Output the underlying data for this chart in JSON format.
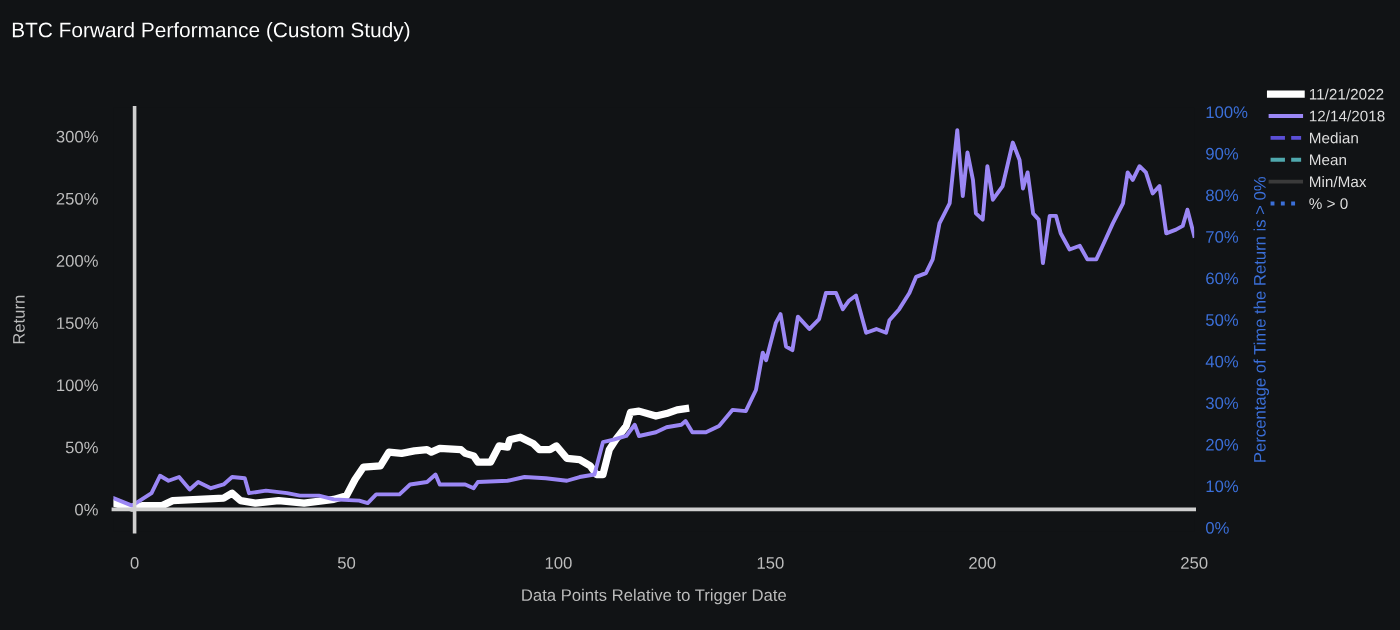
{
  "chart_data": {
    "type": "line",
    "title": "BTC Forward Performance (Custom Study)",
    "xlabel": "Data Points Relative to Trigger Date",
    "ylabel": "Return",
    "y2label": "Percentage of Time the Return is > 0%",
    "xlim": [
      -5,
      250
    ],
    "xticks": [
      0,
      50,
      100,
      150,
      200,
      250
    ],
    "ylim": [
      -18,
      323
    ],
    "yticks": [
      {
        "value": 0,
        "label": "0%"
      },
      {
        "value": 50,
        "label": "50%"
      },
      {
        "value": 100,
        "label": "100%"
      },
      {
        "value": 150,
        "label": "150%"
      },
      {
        "value": 200,
        "label": "200%"
      },
      {
        "value": 250,
        "label": "250%"
      },
      {
        "value": 300,
        "label": "300%"
      }
    ],
    "y2lim": [
      -1,
      101
    ],
    "y2ticks": [
      {
        "value": 0,
        "label": "0%"
      },
      {
        "value": 10,
        "label": "10%"
      },
      {
        "value": 20,
        "label": "20%"
      },
      {
        "value": 30,
        "label": "30%"
      },
      {
        "value": 40,
        "label": "40%"
      },
      {
        "value": 50,
        "label": "50%"
      },
      {
        "value": 60,
        "label": "60%"
      },
      {
        "value": 70,
        "label": "70%"
      },
      {
        "value": 80,
        "label": "80%"
      },
      {
        "value": 90,
        "label": "90%"
      },
      {
        "value": 100,
        "label": "100%"
      }
    ],
    "legend": "top right",
    "marker": "none",
    "series": [
      {
        "name": "11/21/2022",
        "color": "#ffffff",
        "line_style": "solid",
        "x": [
          -5,
          -0.6,
          2,
          6.5,
          9,
          15,
          21,
          23,
          25,
          28.5,
          34,
          40,
          47,
          50,
          52,
          54,
          58,
          60,
          63,
          66,
          69,
          70,
          72,
          77,
          78,
          80,
          81,
          84,
          86,
          88,
          88.5,
          91,
          94,
          95.5,
          98,
          99.5,
          102,
          105,
          107.5,
          109,
          110.5,
          112,
          113.5,
          116,
          117,
          119,
          123,
          125.5,
          128,
          130
        ],
        "values": [
          5,
          1,
          3,
          3,
          7,
          8,
          9,
          13,
          7,
          5,
          7,
          5,
          8,
          11,
          24,
          34,
          35,
          46,
          45,
          47,
          48,
          46,
          49,
          48,
          45,
          43,
          38,
          38,
          51,
          50,
          56,
          58,
          53,
          48,
          48,
          51,
          41,
          40,
          35,
          28,
          28,
          48,
          56,
          67,
          78,
          79,
          75,
          77,
          80,
          81
        ]
      },
      {
        "name": "12/14/2018",
        "color": "#9b87f5",
        "line_style": "solid",
        "x": [
          -5,
          -0.6,
          4,
          6,
          8,
          10.5,
          13,
          15,
          18,
          21,
          23,
          26,
          27,
          31,
          36,
          39,
          43.5,
          47,
          53,
          55,
          57,
          62.5,
          65,
          69,
          71,
          72,
          78,
          80,
          81,
          88,
          92,
          97,
          102,
          105,
          108.5,
          110.5,
          113,
          116,
          118,
          119,
          123,
          125.5,
          129,
          130,
          131.6,
          134.8,
          137.9,
          141.1,
          144.2,
          146.6,
          148.2,
          149,
          151.3,
          152.4,
          153.7,
          155.2,
          156.5,
          159.2,
          161.5,
          163.1,
          165.5,
          167.1,
          168.6,
          170.2,
          172.6,
          175,
          177.3,
          178.1,
          180.4,
          182.8,
          184.4,
          186.7,
          188.3,
          189.9,
          192.3,
          194.1,
          195.4,
          196.5,
          197.8,
          198.5,
          200.1,
          201.2,
          202.5,
          204.8,
          207.2,
          208.8,
          209.6,
          210.7,
          212,
          213.3,
          214.3,
          215.9,
          217.4,
          218.5,
          220.6,
          223,
          224.8,
          226.9,
          228.4,
          230.8,
          233.2,
          234.3,
          235.5,
          237.1,
          238.6,
          240.2,
          241.8,
          243.4,
          245.7,
          247.3,
          248.4,
          250
        ],
        "values": [
          9,
          3,
          13,
          27,
          23,
          26,
          16,
          22,
          17,
          20,
          26,
          25,
          13,
          15,
          13,
          11,
          11,
          8,
          7,
          5,
          12,
          12,
          20,
          22,
          28,
          20,
          20,
          17,
          22,
          23,
          26,
          25,
          23,
          26,
          28,
          54,
          56,
          59,
          68,
          59,
          62,
          66,
          68,
          71,
          62,
          62,
          67,
          80,
          79,
          96,
          126,
          120,
          150,
          157,
          131,
          128,
          155,
          145,
          153,
          174,
          174,
          161,
          168,
          172,
          142,
          145,
          142,
          152,
          161,
          174,
          187,
          190,
          201,
          230,
          246,
          305,
          252,
          287,
          265,
          238,
          233,
          276,
          249,
          260,
          295,
          281,
          258,
          271,
          238,
          233,
          198,
          236,
          236,
          222,
          209,
          212,
          201,
          201,
          212,
          230,
          246,
          271,
          265,
          276,
          271,
          254,
          260,
          222,
          225,
          228,
          241,
          220
        ]
      },
      {
        "name": "Median",
        "color": "#5b4fd6",
        "line_style": "dashed"
      },
      {
        "name": "Mean",
        "color": "#4fa8ad",
        "line_style": "dashed"
      },
      {
        "name": "Min/Max",
        "color": "#3a3a3a",
        "line_style": "solid"
      },
      {
        "name": "% > 0",
        "color": "#3b6fd8",
        "line_style": "dotted"
      }
    ]
  }
}
